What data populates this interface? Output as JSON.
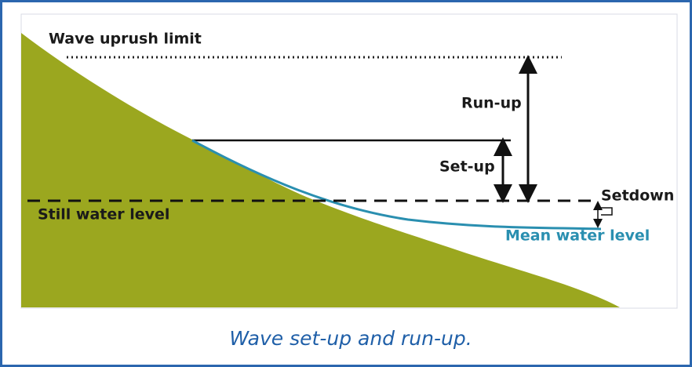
{
  "labels": {
    "uprush": "Wave uprush limit",
    "runup": "Run-up",
    "setup": "Set-up",
    "setdown": "Setdown",
    "still": "Still water level",
    "mean": "Mean water level"
  },
  "caption": "Wave set-up and run-up."
}
